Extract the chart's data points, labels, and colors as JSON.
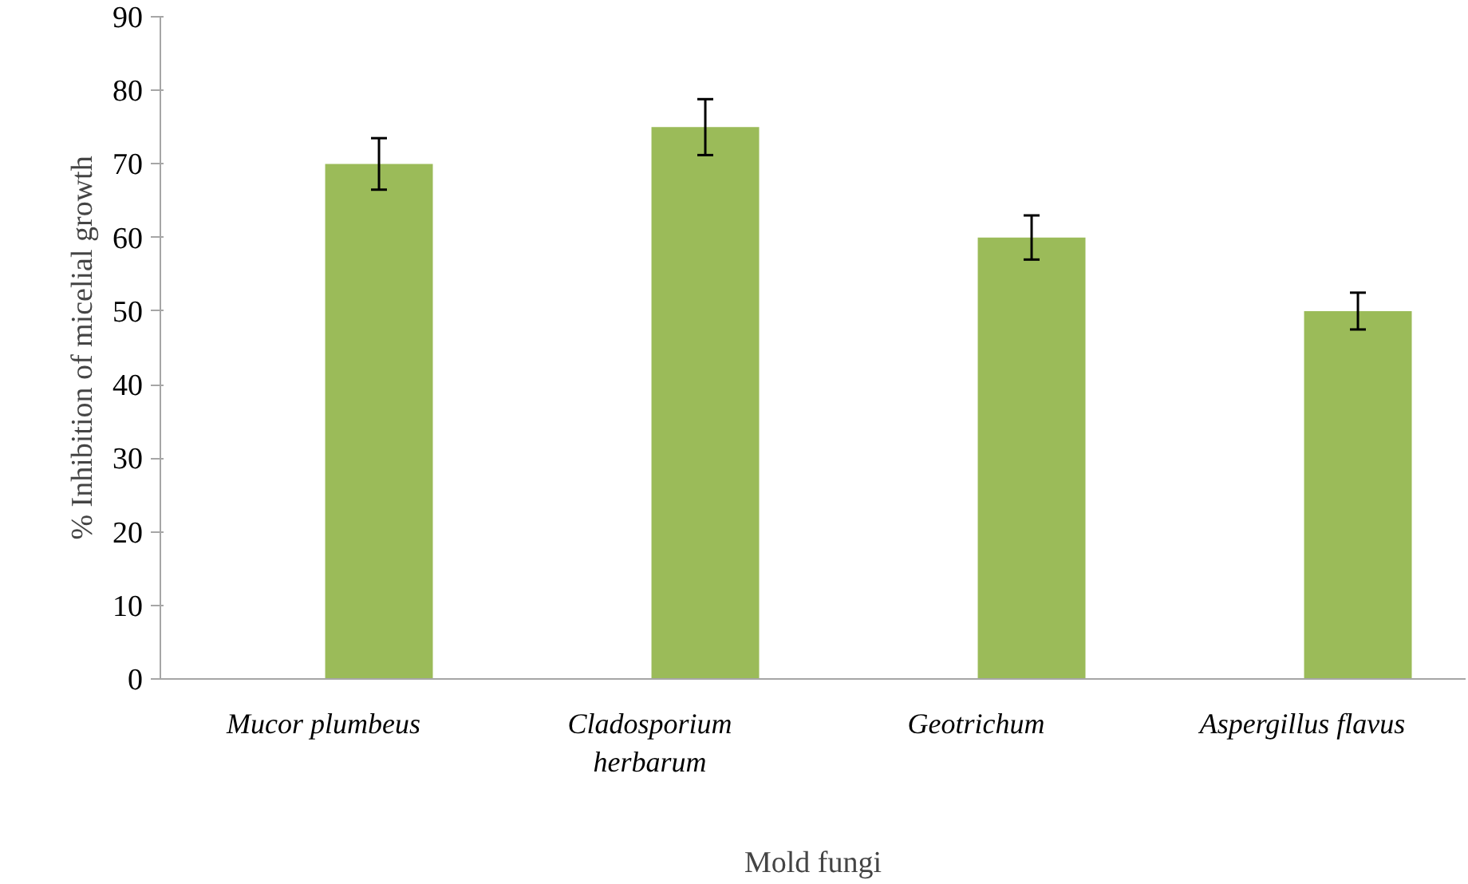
{
  "chart_data": {
    "type": "bar",
    "xlabel": "Mold fungi",
    "ylabel": "% Inhibition of micelial growth",
    "categories": [
      "Mucor plumbeus",
      "Cladosporium herbarum",
      "Geotrichum",
      "Aspergillus flavus"
    ],
    "values": [
      70,
      75,
      60,
      50
    ],
    "errors": [
      3.5,
      3.8,
      3,
      2.5
    ],
    "color": "#9bbb59",
    "ylim": [
      0,
      90
    ],
    "yticks": [
      0,
      10,
      20,
      30,
      40,
      50,
      60,
      70,
      80,
      90
    ],
    "grid": false
  }
}
